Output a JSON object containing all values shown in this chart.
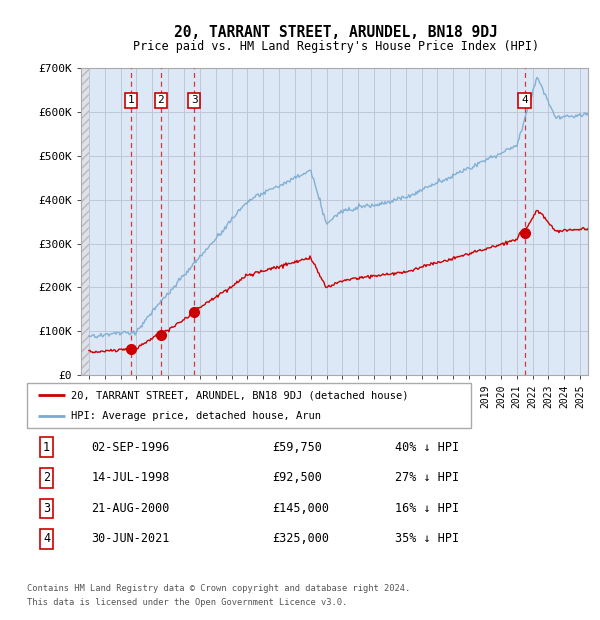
{
  "title": "20, TARRANT STREET, ARUNDEL, BN18 9DJ",
  "subtitle": "Price paid vs. HM Land Registry's House Price Index (HPI)",
  "transactions": [
    {
      "num": 1,
      "date": "02-SEP-1996",
      "year": 1996.67,
      "price": 59750,
      "pct": "40% ↓ HPI"
    },
    {
      "num": 2,
      "date": "14-JUL-1998",
      "year": 1998.54,
      "price": 92500,
      "pct": "27% ↓ HPI"
    },
    {
      "num": 3,
      "date": "21-AUG-2000",
      "year": 2000.64,
      "price": 145000,
      "pct": "16% ↓ HPI"
    },
    {
      "num": 4,
      "date": "30-JUN-2021",
      "year": 2021.5,
      "price": 325000,
      "pct": "35% ↓ HPI"
    }
  ],
  "legend_line1": "20, TARRANT STREET, ARUNDEL, BN18 9DJ (detached house)",
  "legend_line2": "HPI: Average price, detached house, Arun",
  "footer1": "Contains HM Land Registry data © Crown copyright and database right 2024.",
  "footer2": "This data is licensed under the Open Government Licence v3.0.",
  "ylim": [
    0,
    700000
  ],
  "xlim_start": 1993.5,
  "xlim_end": 2025.5,
  "red_color": "#cc0000",
  "blue_color": "#7aaad0",
  "plot_bg_color": "#dce8f5",
  "grid_color": "#c0c8d8",
  "hatch_color": "#c8c8c8"
}
